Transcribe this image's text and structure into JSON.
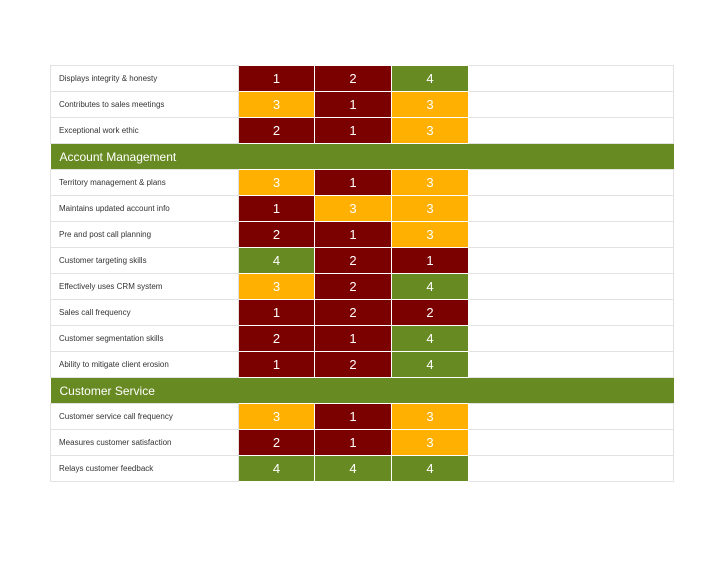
{
  "colors": {
    "low": "#7b0000",
    "mid": "#ffb000",
    "high": "#688a23",
    "section_bg": "#688a23"
  },
  "groups": [
    {
      "title": "",
      "rows": [
        {
          "label": "Displays integrity & honesty",
          "scores": [
            "1",
            "2",
            "4"
          ]
        },
        {
          "label": "Contributes to sales meetings",
          "scores": [
            "3",
            "1",
            "3"
          ]
        },
        {
          "label": "Exceptional work ethic",
          "scores": [
            "2",
            "1",
            "3"
          ]
        }
      ]
    },
    {
      "title": "Account Management",
      "rows": [
        {
          "label": "Territory management & plans",
          "scores": [
            "3",
            "1",
            "3"
          ]
        },
        {
          "label": "Maintains updated account info",
          "scores": [
            "1",
            "3",
            "3"
          ]
        },
        {
          "label": "Pre and post call planning",
          "scores": [
            "2",
            "1",
            "3"
          ]
        },
        {
          "label": "Customer targeting skills",
          "scores": [
            "4",
            "2",
            "1"
          ]
        },
        {
          "label": "Effectively uses CRM system",
          "scores": [
            "3",
            "2",
            "4"
          ]
        },
        {
          "label": "Sales call frequency",
          "scores": [
            "1",
            "2",
            "2"
          ]
        },
        {
          "label": "Customer segmentation skills",
          "scores": [
            "2",
            "1",
            "4"
          ]
        },
        {
          "label": "Ability to mitigate client erosion",
          "scores": [
            "1",
            "2",
            "4"
          ]
        }
      ]
    },
    {
      "title": "Customer Service",
      "rows": [
        {
          "label": "Customer service call frequency",
          "scores": [
            "3",
            "1",
            "3"
          ]
        },
        {
          "label": "Measures customer satisfaction",
          "scores": [
            "2",
            "1",
            "3"
          ]
        },
        {
          "label": "Relays customer feedback",
          "scores": [
            "4",
            "4",
            "4"
          ]
        }
      ]
    }
  ]
}
